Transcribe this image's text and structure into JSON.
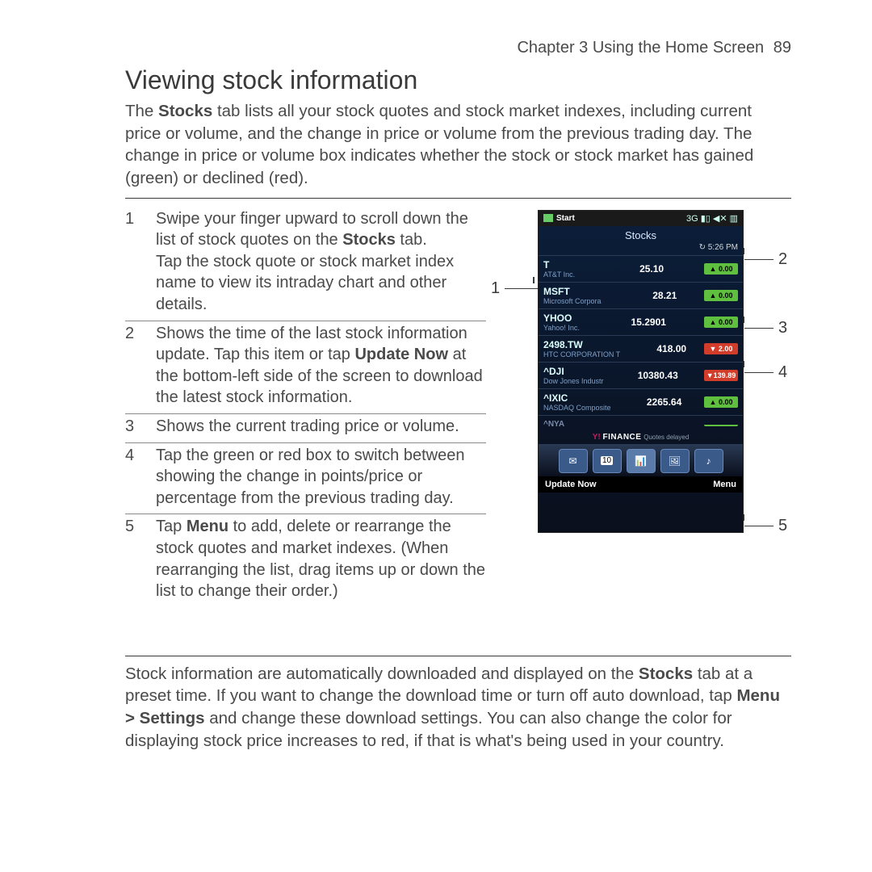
{
  "header": {
    "chapter": "Chapter 3",
    "section_title": "Using the Home Screen",
    "page_number": "89"
  },
  "title": "Viewing stock information",
  "intro_html": "The <b>Stocks</b> tab lists all your stock quotes and stock market indexes, including current price or volume, and the change in price or volume from the previous trading day. The change in price or volume box indicates whether the stock or stock market has gained (green) or declined (red).",
  "steps": [
    {
      "n": "1",
      "html": "Swipe your finger upward to scroll down the list of stock quotes on the <b>Stocks</b> tab.<br>Tap the stock quote or stock market index name to view its intraday chart and other details."
    },
    {
      "n": "2",
      "html": "Shows the time of the last stock information update. Tap this item or tap <b>Update Now</b> at the bottom-left side of the screen to download the latest stock information."
    },
    {
      "n": "3",
      "html": "Shows the current trading price or volume."
    },
    {
      "n": "4",
      "html": "Tap the green or red box to switch between showing the change in points/price or percentage from the previous trading day."
    },
    {
      "n": "5",
      "html": "Tap <b>Menu</b> to add, delete or rearrange the stock quotes and market indexes. (When rearranging the list, drag items up or down the list to change their order.)"
    }
  ],
  "outro_html": "Stock information are automatically downloaded and displayed on the <b>Stocks</b> tab at a preset time. If you want to change the download time or turn off auto download, tap <b>Menu > Settings</b> and change these download settings. You can also change the color for displaying stock price increases to red, if that is what's being used in your country.",
  "phone": {
    "statusbar": {
      "start": "Start",
      "icons": "3G ▮▯ ◀✕ ▥"
    },
    "title": "Stocks",
    "update_time_icon": "↻",
    "update_time": "5:26 PM",
    "rows": [
      {
        "sym": "T",
        "co": "AT&T Inc.",
        "price": "25.10",
        "chg": "▲ 0.00",
        "cls": "green"
      },
      {
        "sym": "MSFT",
        "co": "Microsoft Corpora",
        "price": "28.21",
        "chg": "▲ 0.00",
        "cls": "green"
      },
      {
        "sym": "YHOO",
        "co": "Yahoo! Inc.",
        "price": "15.2901",
        "chg": "▲ 0.00",
        "cls": "green"
      },
      {
        "sym": "2498.TW",
        "co": "HTC CORPORATION T",
        "price": "418.00",
        "chg": "▼ 2.00",
        "cls": "red"
      },
      {
        "sym": "^DJI",
        "co": "Dow Jones Industr",
        "price": "10380.43",
        "chg": "▼139.89",
        "cls": "red"
      },
      {
        "sym": "^IXIC",
        "co": "NASDAQ Composite",
        "price": "2265.64",
        "chg": "▲ 0.00",
        "cls": "green"
      }
    ],
    "partial_sym": "^NYA",
    "finance_brand_mark": "Y!",
    "finance_brand": "FINANCE",
    "finance_sub": "Quotes delayed",
    "tab_badge": "10",
    "soft_left": "Update Now",
    "soft_right": "Menu"
  },
  "callouts": {
    "c1": "1",
    "c2": "2",
    "c3": "3",
    "c4": "4",
    "c5": "5"
  },
  "colors": {
    "green": "#5fbf3f",
    "red": "#d23c2a",
    "phone_bg_top": "#0b1e3a",
    "phone_bg_bot": "#0a0f1c"
  }
}
